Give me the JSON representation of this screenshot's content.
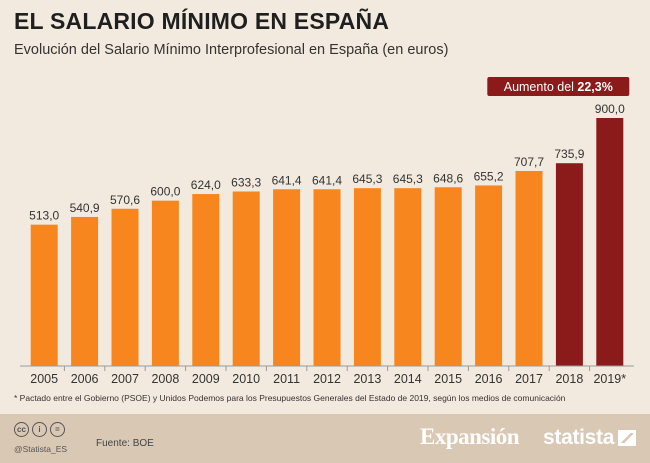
{
  "title": "EL SALARIO MÍNIMO EN ESPAÑA",
  "subtitle": "Evolución del Salario Mínimo Interprofesional en España (en euros)",
  "callout": {
    "prefix": "Aumento del ",
    "value": "22,3%"
  },
  "footnote": "* Pactado entre el Gobierno (PSOE) y Unidos Podemos para los Presupuestos Generales del Estado de 2019, según los medios de comunicación",
  "footer": {
    "handle": "@Statista_ES",
    "source": "Fuente: BOE",
    "brand_left": "Expansión",
    "brand_right": "statista",
    "cc_icons": [
      "cc-icon",
      "by-icon",
      "equals-icon"
    ]
  },
  "colors": {
    "bar": "#f7861e",
    "highlight": "#8b1a1a",
    "axis": "#999999"
  },
  "chart_data": {
    "type": "bar",
    "categories": [
      "2005",
      "2006",
      "2007",
      "2008",
      "2009",
      "2010",
      "2011",
      "2012",
      "2013",
      "2014",
      "2015",
      "2016",
      "2017",
      "2018",
      "2019*"
    ],
    "values": [
      513.0,
      540.9,
      570.6,
      600.0,
      624.0,
      633.3,
      641.4,
      641.4,
      645.3,
      645.3,
      648.6,
      655.2,
      707.7,
      735.9,
      900.0
    ],
    "value_labels": [
      "513,0",
      "540,9",
      "570,6",
      "600,0",
      "624,0",
      "633,3",
      "641,4",
      "641,4",
      "645,3",
      "645,3",
      "648,6",
      "655,2",
      "707,7",
      "735,9",
      "900,0"
    ],
    "highlight_categories": [
      "2018",
      "2019*"
    ],
    "ylim": [
      0,
      900
    ],
    "title": "EL SALARIO MÍNIMO EN ESPAÑA",
    "xlabel": "",
    "ylabel": "",
    "grid": false,
    "legend": "none"
  }
}
